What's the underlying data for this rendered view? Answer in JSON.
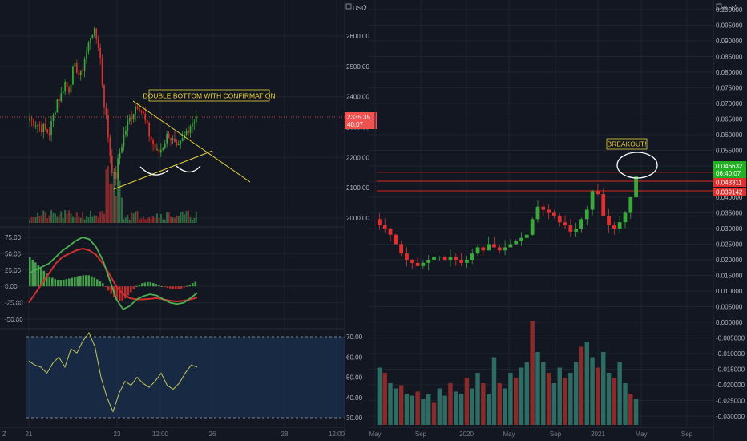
{
  "colors": {
    "background": "#131722",
    "grid": "#1f2330",
    "text": "#b2b5be",
    "up": "#26a69a",
    "down": "#ef5350",
    "bright_green": "#4caf50",
    "bright_red": "#e0302e",
    "macd_line": "#4caf50",
    "signal_line": "#d32f2f",
    "rsi_line": "#c5c65a",
    "rsi_band": "#1e3a5f",
    "trendline": "#e6d33a",
    "annotation_bg": "#131722",
    "annotation_border": "#e6d33a",
    "annotation_text": "#f0d43c"
  },
  "left_panel": {
    "currency_label": "USD",
    "price_axis": [
      "2600.00",
      "2500.00",
      "2400.00",
      "2300.00",
      "2200.00",
      "2100.00",
      "2000.00"
    ],
    "last_price_tag": "2335.35",
    "countdown_tag": "40:07",
    "annotation": "DOUBLE BOTTOM WITH CONFIRMATION",
    "macd_axis": [
      "75.00",
      "50.00",
      "25.00",
      "0.00",
      "-25.00",
      "-50.00"
    ],
    "rsi_axis": [
      "70.00",
      "60.00",
      "50.00",
      "40.00",
      "30.00"
    ],
    "time_axis": [
      "21",
      "23",
      "12:00",
      "26",
      "28",
      "12:00"
    ],
    "corner_label": "Z"
  },
  "right_panel": {
    "currency_label": "BTC",
    "price_axis": [
      "0.100000",
      "0.095000",
      "0.090000",
      "0.085000",
      "0.080000",
      "0.075000",
      "0.070000",
      "0.065000",
      "0.060000",
      "0.055000",
      "0.050000",
      "0.045000",
      "0.040000",
      "0.035000",
      "0.030000",
      "0.025000",
      "0.020000",
      "0.015000",
      "0.010000",
      "0.005000",
      "0.000000",
      "-0.005000",
      "-0.010000",
      "-0.015000",
      "-0.020000",
      "-0.025000",
      "-0.030000"
    ],
    "last_price_tag": "0.046632",
    "countdown_tag": "06:40:07",
    "level_tag_1": "0.043311",
    "level_tag_2": "0.039142",
    "annotation": "BREAKOUT!",
    "time_axis": [
      "May",
      "Sep",
      "2020",
      "May",
      "Sep",
      "2021",
      "May",
      "Sep"
    ]
  },
  "chart_data": [
    {
      "type": "candlestick",
      "title": "",
      "pair_quote": "USD",
      "x_labels": [
        "21",
        "23",
        "12:00",
        "26",
        "28",
        "12:00"
      ],
      "ylim": [
        1950,
        2700
      ],
      "close_path": [
        2330,
        2320,
        2310,
        2300,
        2290,
        2280,
        2330,
        2390,
        2400,
        2450,
        2420,
        2480,
        2500,
        2460,
        2520,
        2560,
        2620,
        2600,
        2560,
        2400,
        2300,
        2180,
        2120,
        2200,
        2260,
        2300,
        2330,
        2360,
        2380,
        2350,
        2310,
        2270,
        2240,
        2210,
        2230,
        2260,
        2280,
        2250,
        2220,
        2240,
        2270,
        2300,
        2320,
        2335.35
      ],
      "last_price": 2335.35,
      "macd": {
        "line": [
          20,
          25,
          30,
          35,
          45,
          55,
          62,
          70,
          75,
          72,
          60,
          40,
          10,
          -20,
          -35,
          -30,
          -20,
          -15,
          -12,
          -14,
          -20,
          -25,
          -27,
          -25,
          -18,
          -10
        ],
        "signal": [
          -25,
          -10,
          5,
          20,
          35,
          45,
          50,
          55,
          58,
          55,
          48,
          35,
          18,
          0,
          -12,
          -18,
          -20,
          -20,
          -19,
          -18,
          -20,
          -22,
          -23,
          -22,
          -20,
          -17
        ],
        "ylim": [
          -60,
          80
        ]
      },
      "rsi": {
        "values": [
          58,
          56,
          55,
          52,
          57,
          60,
          55,
          64,
          62,
          68,
          72,
          65,
          50,
          40,
          33,
          42,
          48,
          46,
          50,
          47,
          45,
          48,
          52,
          46,
          44,
          47,
          52,
          56,
          55
        ],
        "band": [
          30,
          70
        ],
        "ylim": [
          28,
          72
        ]
      }
    },
    {
      "type": "candlestick",
      "title": "",
      "pair_quote": "BTC",
      "x_labels": [
        "May",
        "Sep",
        "2020",
        "May",
        "Sep",
        "2021",
        "May",
        "Sep"
      ],
      "ylim": [
        -0.032,
        0.1005
      ],
      "close_path": [
        0.031,
        0.03,
        0.028,
        0.025,
        0.022,
        0.02,
        0.019,
        0.018,
        0.019,
        0.02,
        0.021,
        0.021,
        0.02,
        0.021,
        0.02,
        0.019,
        0.02,
        0.022,
        0.024,
        0.023,
        0.025,
        0.024,
        0.023,
        0.024,
        0.025,
        0.026,
        0.027,
        0.028,
        0.033,
        0.037,
        0.036,
        0.035,
        0.034,
        0.032,
        0.031,
        0.029,
        0.03,
        0.033,
        0.036,
        0.042,
        0.041,
        0.034,
        0.031,
        0.03,
        0.032,
        0.035,
        0.04,
        0.046632
      ],
      "last_price": 0.046632,
      "horizontal_levels": [
        0.043311,
        0.039142
      ],
      "volume": [
        0.55,
        0.5,
        0.4,
        0.35,
        0.38,
        0.3,
        0.28,
        0.32,
        0.25,
        0.3,
        0.22,
        0.35,
        0.28,
        0.4,
        0.32,
        0.3,
        0.45,
        0.35,
        0.5,
        0.4,
        0.3,
        0.65,
        0.4,
        0.35,
        0.5,
        0.45,
        0.55,
        0.6,
        1.0,
        0.7,
        0.6,
        0.5,
        0.4,
        0.55,
        0.45,
        0.5,
        0.6,
        0.75,
        0.8,
        0.65,
        0.55,
        0.7,
        0.5,
        0.45,
        0.6,
        0.4,
        0.3,
        0.25
      ]
    }
  ]
}
